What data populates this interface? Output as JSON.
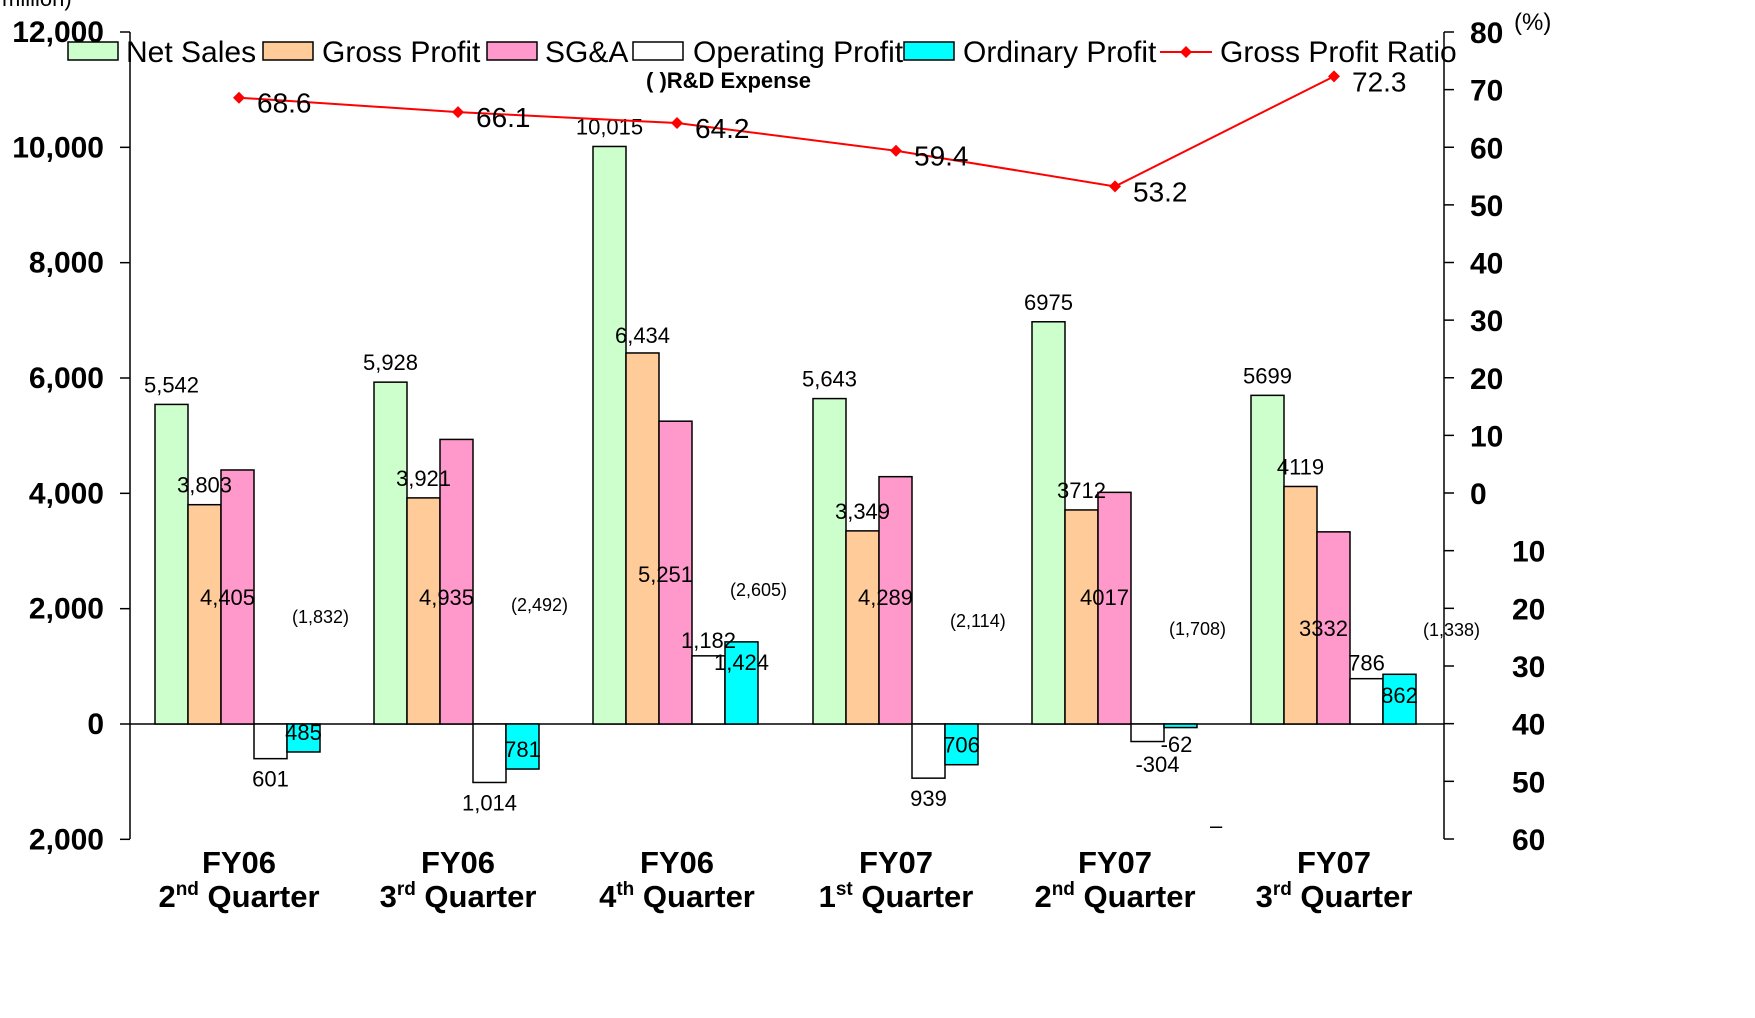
{
  "chart_data": {
    "type": "bar",
    "units_label": "million)",
    "right_unit": "(%)",
    "legend_note": "( )R&D Expense",
    "categories": [
      [
        "FY06",
        "2nd Quarter"
      ],
      [
        "FY06",
        "3rd Quarter"
      ],
      [
        "FY06",
        "4th Quarter"
      ],
      [
        "FY07",
        "1st Quarter"
      ],
      [
        "FY07",
        "2nd Quarter"
      ],
      [
        "FY07",
        "3rd Quarter"
      ]
    ],
    "category_parts": [
      {
        "line1": "FY06",
        "num": "2",
        "sup": "nd",
        "word": "Quarter"
      },
      {
        "line1": "FY06",
        "num": "3",
        "sup": "rd",
        "word": "Quarter"
      },
      {
        "line1": "FY06",
        "num": "4",
        "sup": "th",
        "word": "Quarter"
      },
      {
        "line1": "FY07",
        "num": "1",
        "sup": "st",
        "word": "Quarter"
      },
      {
        "line1": "FY07",
        "num": "2",
        "sup": "nd",
        "word": "Quarter"
      },
      {
        "line1": "FY07",
        "num": "3",
        "sup": "rd",
        "word": "Quarter"
      }
    ],
    "left_axis": {
      "ylim": [
        -2000,
        12000
      ],
      "ticks": [
        12000,
        10000,
        8000,
        6000,
        4000,
        2000,
        0,
        -2000
      ],
      "tick_labels": [
        "12,000",
        "10,000",
        "8,000",
        "6,000",
        "4,000",
        "2,000",
        "0",
        "2,000"
      ]
    },
    "right_axis": {
      "ticks": [
        80,
        70,
        60,
        50,
        40,
        30,
        20,
        10,
        0,
        -10,
        -20,
        -30,
        -40,
        -50,
        -60
      ],
      "tick_labels": [
        "80",
        "70",
        "60",
        "50",
        "40",
        "30",
        "20",
        "10",
        "0",
        "10",
        "20",
        "30",
        "40",
        "50",
        "60"
      ]
    },
    "series": [
      {
        "name": "Net Sales",
        "color": "#ccffcc",
        "values": [
          5542,
          5928,
          10015,
          5643,
          6975,
          5699
        ],
        "labels": [
          "5,542",
          "5,928",
          "10,015",
          "5,643",
          "6975",
          "5699"
        ]
      },
      {
        "name": "Gross Profit",
        "color": "#ffcc99",
        "values": [
          3803,
          3921,
          6434,
          3349,
          3712,
          4119
        ],
        "labels": [
          "3,803",
          "3,921",
          "6,434",
          "3,349",
          "3712",
          "4119"
        ]
      },
      {
        "name": "SG&A",
        "color": "#ff99cc",
        "values": [
          4405,
          4935,
          5251,
          4289,
          4017,
          3332
        ],
        "labels": [
          "4,405",
          "4,935",
          "5,251",
          "4,289",
          "4017",
          "3332"
        ]
      },
      {
        "name": "Operating Profit",
        "color": "#ffffff",
        "values": [
          -601,
          -1014,
          1182,
          -939,
          -304,
          786
        ],
        "labels": [
          "601",
          "1,014",
          "1,182",
          "939",
          "-304",
          "786"
        ]
      },
      {
        "name": "Ordinary Profit",
        "color": "#00ffff",
        "values": [
          -485,
          -781,
          1424,
          -706,
          -62,
          862
        ],
        "labels": [
          "485",
          "781",
          "1,424",
          "706",
          "-62",
          "862"
        ]
      }
    ],
    "rd_expense_labels": [
      "(1,832)",
      "(2,492)",
      "(2,605)",
      "(2,114)",
      "(1,708)",
      "(1,338)"
    ],
    "line_series": {
      "name": "Gross Profit Ratio",
      "color": "#ff0000",
      "values": [
        68.6,
        66.1,
        64.2,
        59.4,
        53.2,
        72.3
      ],
      "labels": [
        "68.6",
        "66.1",
        "64.2",
        "59.4",
        "53.2",
        "72.3"
      ]
    },
    "stray_mark": "–"
  }
}
